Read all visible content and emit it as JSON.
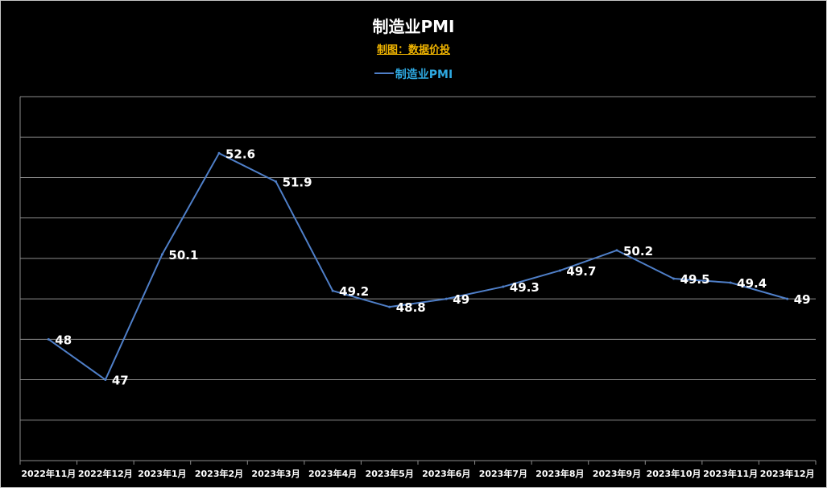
{
  "chart_data": {
    "type": "line",
    "title": "制造业PMI",
    "subtitle": "制图：数据价投",
    "categories": [
      "2022年11月",
      "2022年12月",
      "2023年1月",
      "2023年2月",
      "2023年3月",
      "2023年4月",
      "2023年5月",
      "2023年6月",
      "2023年7月",
      "2023年8月",
      "2023年9月",
      "2023年10月",
      "2023年11月",
      "2023年12月"
    ],
    "series": [
      {
        "name": "制造业PMI",
        "color": "#4f7fc8",
        "values": [
          48,
          47,
          50.1,
          52.6,
          51.9,
          49.2,
          48.8,
          49,
          49.3,
          49.7,
          50.2,
          49.5,
          49.4,
          49
        ],
        "labels": [
          "48",
          "47",
          "50.1",
          "52.6",
          "51.9",
          "49.2",
          "48.8",
          "49",
          "49.3",
          "49.7",
          "50.2",
          "49.5",
          "49.4",
          "49"
        ]
      }
    ],
    "ylim": [
      45,
      54
    ],
    "grid": true,
    "legend": "top-center",
    "xlabel": "",
    "ylabel": ""
  }
}
